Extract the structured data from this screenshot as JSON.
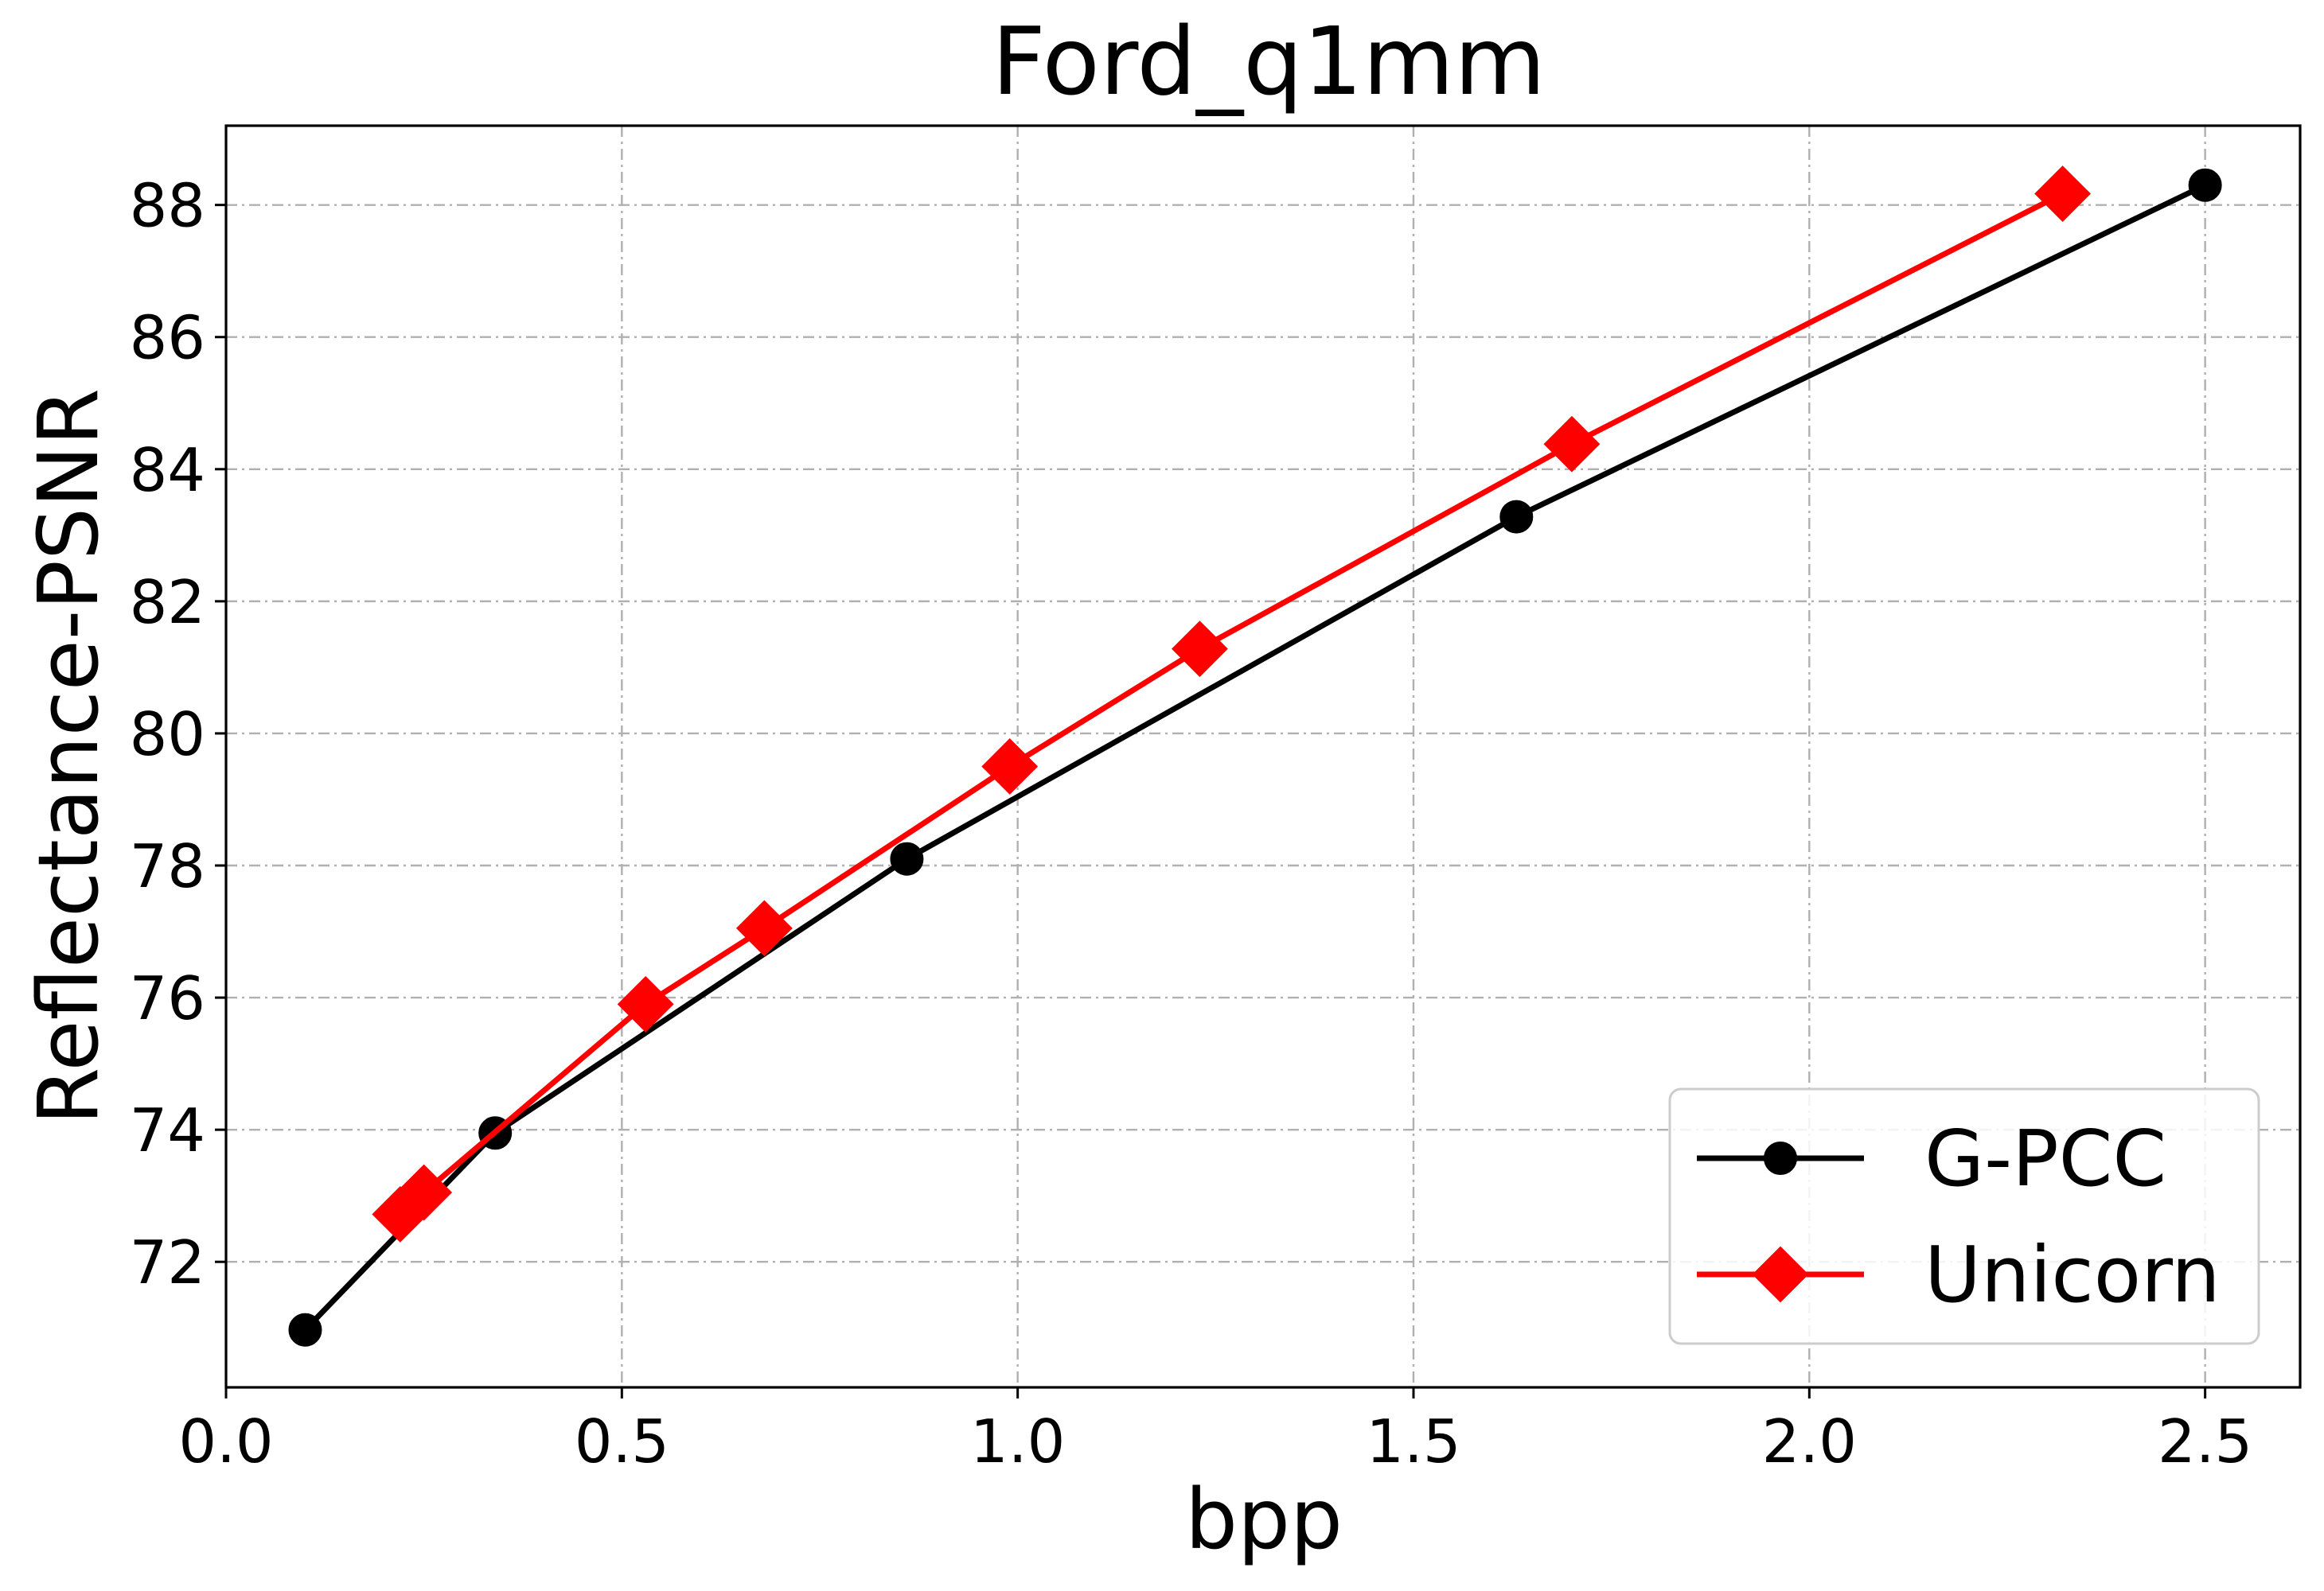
{
  "chart_data": {
    "type": "line",
    "title": "Ford_q1mm",
    "xlabel": "bpp",
    "ylabel": "Reflectance-PSNR",
    "xlim": [
      0.0,
      2.62
    ],
    "ylim": [
      70.1,
      89.2
    ],
    "xticks": [
      0.0,
      0.5,
      1.0,
      1.5,
      2.0,
      2.5
    ],
    "xtick_labels": [
      "0.0",
      "0.5",
      "1.0",
      "1.5",
      "2.0",
      "2.5"
    ],
    "yticks": [
      72,
      74,
      76,
      78,
      80,
      82,
      84,
      86,
      88
    ],
    "ytick_labels": [
      "72",
      "74",
      "76",
      "78",
      "80",
      "82",
      "84",
      "86",
      "88"
    ],
    "grid": true,
    "legend_position": "bottom-right",
    "series": [
      {
        "name": "G-PCC",
        "color": "#000000",
        "marker": "circle",
        "x": [
          0.1,
          0.34,
          0.86,
          1.63,
          2.5
        ],
        "y": [
          70.97,
          73.95,
          78.1,
          83.28,
          88.3
        ]
      },
      {
        "name": "Unicorn",
        "color": "#ff0000",
        "marker": "diamond",
        "x": [
          0.22,
          0.25,
          0.53,
          0.68,
          0.99,
          1.23,
          1.7,
          2.32
        ],
        "y": [
          72.72,
          73.05,
          75.9,
          77.05,
          79.5,
          81.28,
          84.38,
          88.17
        ]
      }
    ]
  }
}
